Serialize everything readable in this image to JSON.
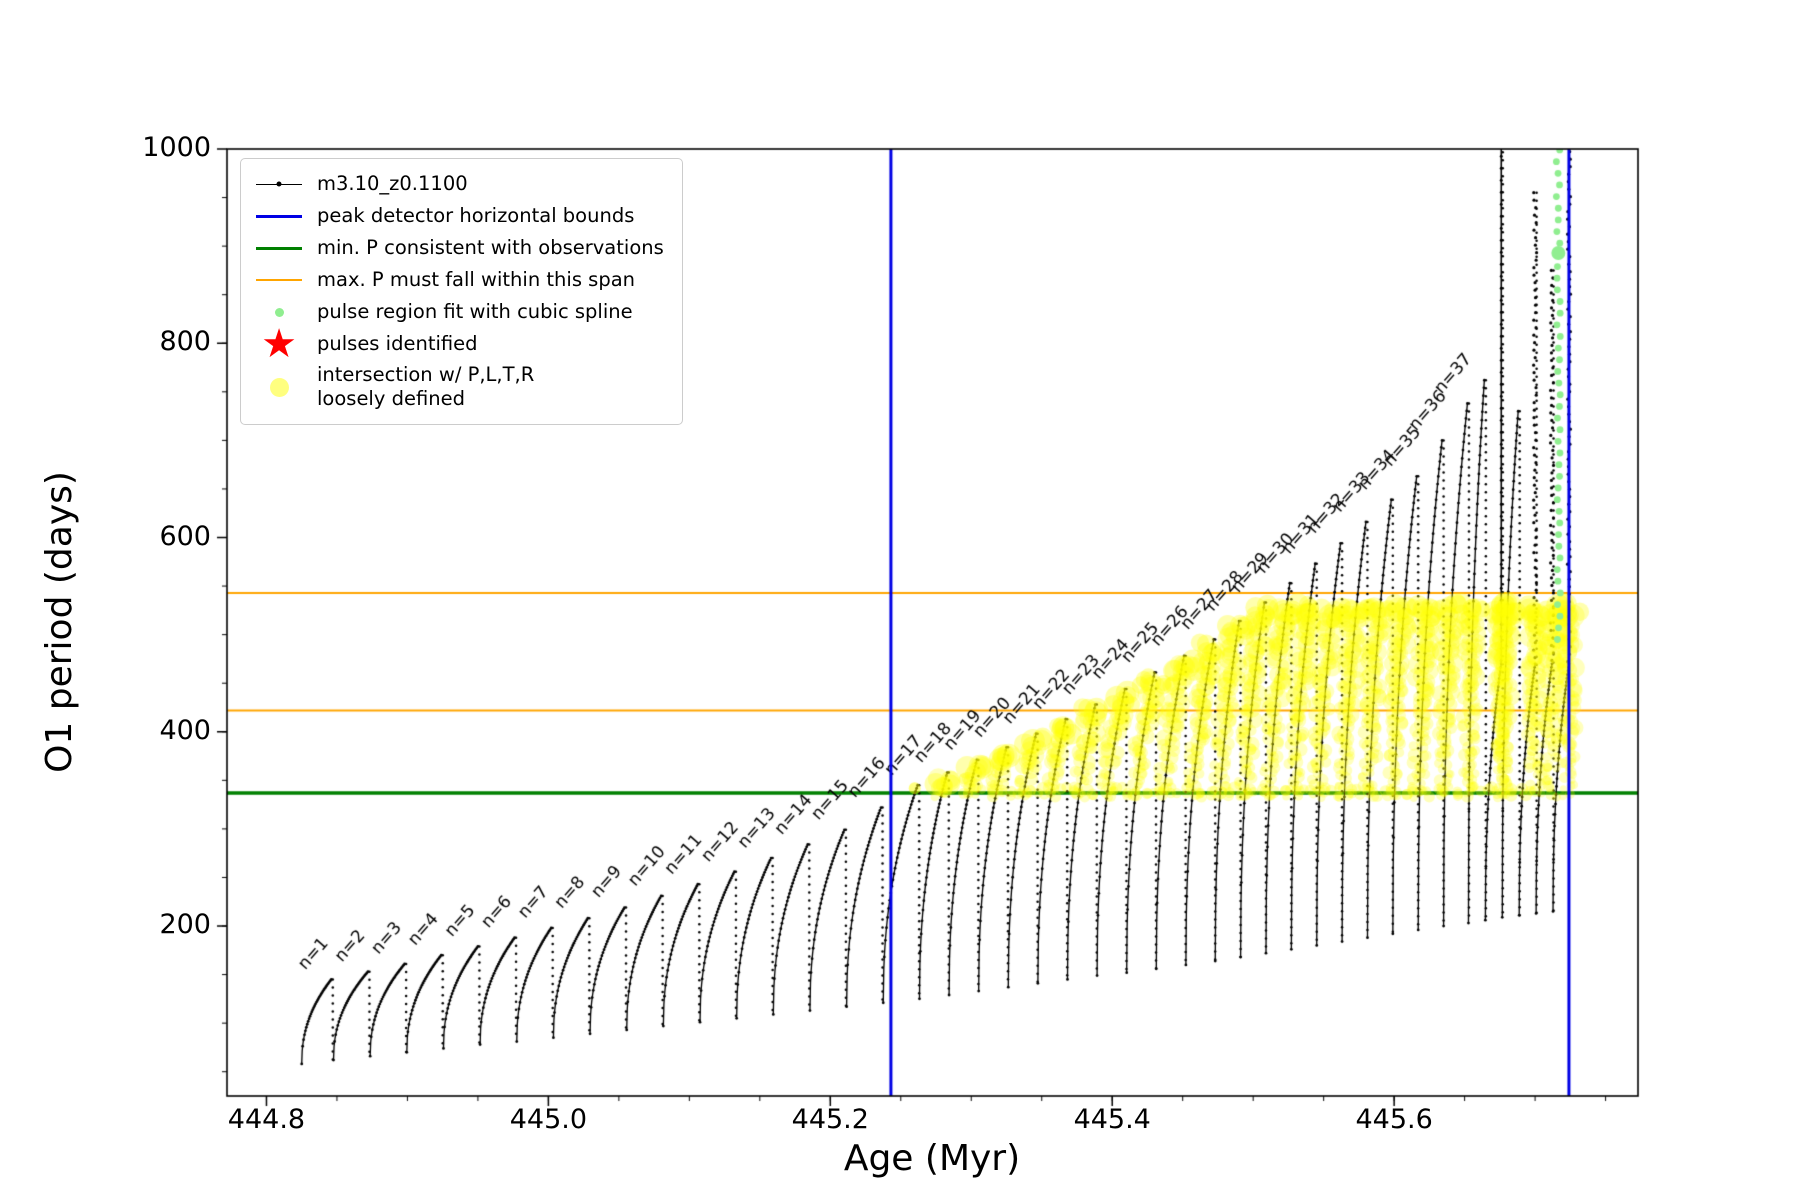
{
  "icons": {
    "star": "★"
  },
  "legend": {
    "items": [
      {
        "label": "m3.10_z0.1100"
      },
      {
        "label": "peak detector horizontal bounds"
      },
      {
        "label": "min. P consistent with observations"
      },
      {
        "label": "max. P must fall within this span"
      },
      {
        "label": "pulse region fit with cubic spline"
      },
      {
        "label": "pulses identified"
      },
      {
        "label": "intersection w/ P,L,T,R\nloosely defined"
      }
    ]
  },
  "chart_data": {
    "type": "line",
    "title": "",
    "xlabel": "Age (Myr)",
    "ylabel": "O1 period (days)",
    "xlim": [
      444.772,
      445.773
    ],
    "ylim": [
      25,
      1000
    ],
    "x_ticks": [
      444.8,
      445.0,
      445.2,
      445.4,
      445.6
    ],
    "x_tick_labels": [
      "444.8",
      "445.0",
      "445.2",
      "445.4",
      "445.6"
    ],
    "y_ticks": [
      200,
      400,
      600,
      800,
      1000
    ],
    "y_tick_labels": [
      "200",
      "400",
      "600",
      "800",
      "1000"
    ],
    "x_minor_step": 0.05,
    "y_minor_step": 50,
    "grid": false,
    "legend_position": "upper left",
    "series": {
      "track": {
        "name": "m3.10_z0.1100",
        "color": "#000000",
        "style": "line+dot",
        "x_start": 444.825,
        "rise_exponent": 0.45,
        "spike_base": 470,
        "label_prefix": "n=",
        "labeled_max": 37,
        "pulse_fields": [
          "n",
          "x_peak_Myr",
          "P_peak_days",
          "P_min_days",
          "spike_style"
        ],
        "pulses": [
          [
            1,
            444.846,
            145,
            58,
            0
          ],
          [
            2,
            444.872,
            153,
            62,
            0
          ],
          [
            3,
            444.898,
            161,
            66,
            0
          ],
          [
            4,
            444.924,
            170,
            70,
            0
          ],
          [
            5,
            444.95,
            179,
            74,
            0
          ],
          [
            6,
            444.976,
            188,
            78,
            0
          ],
          [
            7,
            445.002,
            198,
            81,
            0
          ],
          [
            8,
            445.028,
            208,
            85,
            0
          ],
          [
            9,
            445.054,
            219,
            89,
            0
          ],
          [
            10,
            445.08,
            231,
            93,
            0
          ],
          [
            11,
            445.106,
            243,
            97,
            0
          ],
          [
            12,
            445.132,
            256,
            101,
            0
          ],
          [
            13,
            445.158,
            270,
            105,
            0
          ],
          [
            14,
            445.184,
            284,
            109,
            0
          ],
          [
            15,
            445.21,
            299,
            113,
            0
          ],
          [
            16,
            445.236,
            322,
            117,
            0
          ],
          [
            17,
            445.262,
            345,
            121,
            0
          ],
          [
            18,
            445.283,
            358,
            125,
            0
          ],
          [
            19,
            445.304,
            371,
            129,
            0
          ],
          [
            20,
            445.325,
            384,
            133,
            0
          ],
          [
            21,
            445.346,
            398,
            137,
            0
          ],
          [
            22,
            445.367,
            413,
            141,
            0
          ],
          [
            23,
            445.388,
            428,
            145,
            0
          ],
          [
            24,
            445.409,
            444,
            149,
            0
          ],
          [
            25,
            445.43,
            461,
            152,
            0
          ],
          [
            26,
            445.451,
            478,
            156,
            0
          ],
          [
            27,
            445.472,
            495,
            160,
            0
          ],
          [
            28,
            445.49,
            514,
            164,
            0
          ],
          [
            29,
            445.508,
            533,
            168,
            0
          ],
          [
            30,
            445.526,
            553,
            172,
            0
          ],
          [
            31,
            445.544,
            573,
            176,
            0
          ],
          [
            32,
            445.562,
            594,
            180,
            0
          ],
          [
            33,
            445.58,
            616,
            184,
            0
          ],
          [
            34,
            445.598,
            639,
            188,
            0
          ],
          [
            35,
            445.616,
            663,
            192,
            0
          ],
          [
            36,
            445.634,
            700,
            196,
            0
          ],
          [
            37,
            445.652,
            738,
            200,
            0
          ],
          [
            38,
            445.664,
            762,
            203,
            0
          ],
          [
            39,
            445.676,
            1005,
            206,
            1
          ],
          [
            40,
            445.688,
            730,
            209,
            0
          ],
          [
            41,
            445.7,
            955,
            211,
            2
          ],
          [
            42,
            445.712,
            875,
            213,
            2
          ],
          [
            43,
            445.724,
            1005,
            215,
            2
          ]
        ]
      },
      "peak_bounds": {
        "name": "peak detector horizontal bounds",
        "color": "#0000e5",
        "x": [
          445.243,
          445.724
        ]
      },
      "min_P": {
        "name": "min. P consistent with observations",
        "color": "#008000",
        "y": 337
      },
      "max_P_span": {
        "name": "max. P must fall within this span",
        "color": "#ffa500",
        "y": [
          422,
          543
        ]
      },
      "spline_fit": {
        "name": "pulse region fit with cubic spline",
        "color": "#90ee90",
        "x": 445.7165,
        "y_min": 495,
        "y_max": 1000,
        "y_step": 12,
        "highlight_y": 893
      },
      "pulses_identified": {
        "name": "pulses identified",
        "color": "#ff0000",
        "marker": "star",
        "points": []
      },
      "intersection": {
        "name": "intersection w/ P,L,T,R loosely defined",
        "color": "#ffff00",
        "alpha": 0.3,
        "x_min": 445.238,
        "x_max": 445.728,
        "y_base": 336,
        "y_cap_max": 525,
        "cap_offset": 10,
        "band_x_from": 445.295,
        "band_x_to": 445.7
      }
    }
  }
}
